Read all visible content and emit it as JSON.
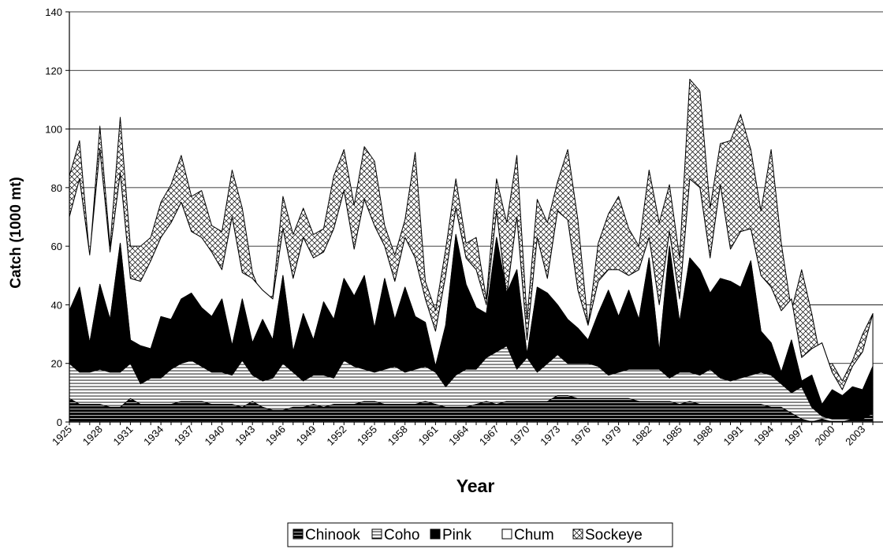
{
  "chart_data": {
    "type": "area",
    "stacked": true,
    "title": "",
    "xlabel": "Year",
    "ylabel": "Catch (1000 mt)",
    "ylim": [
      0,
      140
    ],
    "yticks": [
      0,
      20,
      40,
      60,
      80,
      100,
      120,
      140
    ],
    "gridlines": true,
    "legend_position": "bottom",
    "x": [
      1925,
      1926,
      1927,
      1928,
      1929,
      1930,
      1931,
      1932,
      1933,
      1934,
      1935,
      1936,
      1937,
      1938,
      1939,
      1940,
      1941,
      1942,
      1943,
      1944,
      1945,
      1946,
      1947,
      1948,
      1949,
      1950,
      1951,
      1952,
      1953,
      1954,
      1955,
      1956,
      1957,
      1958,
      1959,
      1960,
      1961,
      1962,
      1963,
      1964,
      1965,
      1966,
      1967,
      1968,
      1969,
      1970,
      1971,
      1972,
      1973,
      1974,
      1975,
      1976,
      1977,
      1978,
      1979,
      1980,
      1981,
      1982,
      1983,
      1984,
      1985,
      1986,
      1987,
      1988,
      1989,
      1990,
      1991,
      1992,
      1993,
      1994,
      1995,
      1996,
      1997,
      1998,
      1999,
      2000,
      2001,
      2002,
      2003,
      2004
    ],
    "xtick_labels": [
      "1925",
      "1928",
      "1931",
      "1934",
      "1937",
      "1940",
      "1943",
      "1946",
      "1949",
      "1952",
      "1955",
      "1958",
      "1961",
      "1964",
      "1967",
      "1970",
      "1973",
      "1976",
      "1979",
      "1982",
      "1985",
      "1988",
      "1991",
      "1994",
      "1997",
      "2000",
      "2003"
    ],
    "series": [
      {
        "name": "Chinook",
        "pattern": "chinook-pattern",
        "cumulative": [
          8,
          6,
          6,
          6,
          5,
          5,
          8,
          6,
          6,
          6,
          6,
          7,
          7,
          7,
          6,
          6,
          6,
          5,
          7,
          5,
          4,
          4,
          5,
          5,
          6,
          5,
          6,
          6,
          6,
          7,
          7,
          6,
          6,
          6,
          6,
          7,
          6,
          5,
          5,
          5,
          6,
          7,
          6,
          7,
          7,
          7,
          7,
          7,
          9,
          9,
          8,
          8,
          8,
          8,
          8,
          8,
          7,
          7,
          7,
          7,
          6,
          7,
          6,
          6,
          6,
          6,
          6,
          6,
          6,
          5,
          5,
          3,
          1,
          0,
          1,
          0,
          0,
          1,
          1,
          3
        ]
      },
      {
        "name": "Coho",
        "pattern": "coho-pattern",
        "cumulative": [
          20,
          17,
          17,
          18,
          17,
          17,
          20,
          13,
          15,
          15,
          18,
          20,
          21,
          19,
          17,
          17,
          16,
          21,
          16,
          14,
          15,
          20,
          17,
          14,
          16,
          16,
          15,
          21,
          19,
          18,
          17,
          18,
          19,
          17,
          18,
          19,
          17,
          12,
          16,
          18,
          18,
          22,
          24,
          26,
          18,
          22,
          17,
          20,
          23,
          20,
          20,
          20,
          19,
          16,
          17,
          18,
          18,
          18,
          18,
          15,
          17,
          17,
          16,
          18,
          15,
          14,
          15,
          16,
          17,
          16,
          13,
          10,
          12,
          5,
          2,
          1,
          1,
          1,
          1,
          3
        ]
      },
      {
        "name": "Pink",
        "pattern": "pink-pattern",
        "cumulative": [
          38,
          46,
          27,
          47,
          35,
          61,
          28,
          26,
          25,
          36,
          35,
          42,
          44,
          39,
          36,
          42,
          26,
          42,
          27,
          35,
          28,
          50,
          24,
          37,
          28,
          41,
          35,
          49,
          43,
          50,
          32,
          49,
          35,
          46,
          36,
          34,
          19,
          33,
          64,
          47,
          39,
          37,
          63,
          44,
          52,
          23,
          46,
          44,
          40,
          35,
          32,
          28,
          37,
          45,
          36,
          45,
          35,
          56,
          24,
          60,
          34,
          56,
          52,
          44,
          49,
          48,
          46,
          55,
          31,
          27,
          17,
          28,
          14,
          16,
          6,
          11,
          9,
          12,
          11,
          19
        ]
      },
      {
        "name": "Chum",
        "pattern": "chum-pattern",
        "cumulative": [
          70,
          83,
          57,
          93,
          58,
          85,
          49,
          48,
          55,
          63,
          68,
          75,
          65,
          63,
          58,
          52,
          70,
          51,
          49,
          45,
          42,
          66,
          49,
          63,
          56,
          58,
          66,
          79,
          59,
          76,
          67,
          60,
          48,
          63,
          56,
          42,
          31,
          50,
          73,
          56,
          52,
          40,
          72,
          43,
          70,
          28,
          63,
          49,
          72,
          69,
          45,
          33,
          48,
          52,
          52,
          50,
          52,
          63,
          40,
          65,
          42,
          83,
          80,
          56,
          81,
          59,
          65,
          66,
          50,
          46,
          38,
          42,
          22,
          25,
          27,
          17,
          11,
          19,
          24,
          37
        ]
      },
      {
        "name": "Sockeye",
        "pattern": "sockeye-pattern",
        "cumulative": [
          84,
          96,
          56,
          101,
          60,
          104,
          60,
          60,
          63,
          75,
          81,
          91,
          77,
          79,
          67,
          65,
          86,
          73,
          51,
          42,
          43,
          77,
          64,
          73,
          64,
          66,
          84,
          93,
          74,
          94,
          89,
          67,
          57,
          69,
          92,
          48,
          38,
          59,
          83,
          61,
          63,
          42,
          83,
          68,
          91,
          35,
          76,
          68,
          82,
          93,
          69,
          33,
          61,
          71,
          77,
          66,
          60,
          86,
          68,
          81,
          56,
          117,
          113,
          73,
          95,
          96,
          105,
          93,
          72,
          93,
          61,
          38,
          52,
          37,
          19,
          20,
          14,
          21,
          30,
          37
        ]
      }
    ]
  },
  "legend": {
    "items": [
      {
        "label": "Chinook"
      },
      {
        "label": "Coho"
      },
      {
        "label": "Pink"
      },
      {
        "label": "Chum"
      },
      {
        "label": "Sockeye"
      }
    ]
  }
}
